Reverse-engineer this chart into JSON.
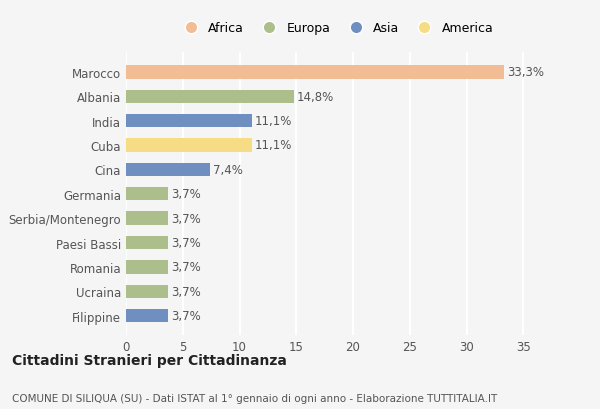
{
  "categories": [
    "Marocco",
    "Albania",
    "India",
    "Cuba",
    "Cina",
    "Germania",
    "Serbia/Montenegro",
    "Paesi Bassi",
    "Romania",
    "Ucraina",
    "Filippine"
  ],
  "values": [
    33.3,
    14.8,
    11.1,
    11.1,
    7.4,
    3.7,
    3.7,
    3.7,
    3.7,
    3.7,
    3.7
  ],
  "labels": [
    "33,3%",
    "14,8%",
    "11,1%",
    "11,1%",
    "7,4%",
    "3,7%",
    "3,7%",
    "3,7%",
    "3,7%",
    "3,7%",
    "3,7%"
  ],
  "colors": [
    "#F2BC94",
    "#ABBE8B",
    "#6F8FC0",
    "#F5DC85",
    "#6F8FC0",
    "#ABBE8B",
    "#ABBE8B",
    "#ABBE8B",
    "#ABBE8B",
    "#ABBE8B",
    "#6F8FC0"
  ],
  "legend_labels": [
    "Africa",
    "Europa",
    "Asia",
    "America"
  ],
  "legend_colors": [
    "#F2BC94",
    "#ABBE8B",
    "#6F8FC0",
    "#F5DC85"
  ],
  "xlim": [
    0,
    37
  ],
  "xticks": [
    0,
    5,
    10,
    15,
    20,
    25,
    30,
    35
  ],
  "title": "Cittadini Stranieri per Cittadinanza",
  "subtitle": "COMUNE DI SILIQUA (SU) - Dati ISTAT al 1° gennaio di ogni anno - Elaborazione TUTTITALIA.IT",
  "background_color": "#f5f5f5",
  "plot_bg_color": "#f5f5f5",
  "grid_color": "#ffffff",
  "bar_height": 0.55,
  "label_fontsize": 8.5,
  "tick_fontsize": 8.5,
  "title_fontsize": 10,
  "subtitle_fontsize": 7.5
}
